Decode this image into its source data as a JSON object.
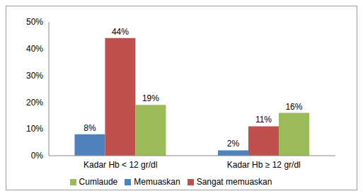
{
  "chart_data": {
    "type": "bar",
    "categories": [
      "Kadar Hb < 12 gr/dl",
      "Kadar Hb ≥ 12 gr/dl"
    ],
    "series": [
      {
        "name": "Memuaskan",
        "color": "#4f81bd",
        "values": [
          8,
          2
        ],
        "value_labels": [
          "8%",
          "2%"
        ]
      },
      {
        "name": "Sangat memuaskan",
        "color": "#c0504d",
        "values": [
          44,
          11
        ],
        "value_labels": [
          "44%",
          "11%"
        ]
      },
      {
        "name": "Cumlaude",
        "color": "#9bbb59",
        "values": [
          19,
          16
        ],
        "value_labels": [
          "19%",
          "16%"
        ]
      }
    ],
    "ylim": [
      0,
      50
    ],
    "yticks": [
      {
        "value": 0,
        "label": "0%"
      },
      {
        "value": 10,
        "label": "10%"
      },
      {
        "value": 20,
        "label": "20%"
      },
      {
        "value": 30,
        "label": "30%"
      },
      {
        "value": 40,
        "label": "40%"
      },
      {
        "value": 50,
        "label": "50%"
      }
    ],
    "grid": false,
    "legend": "bottom",
    "data_labels": true
  }
}
